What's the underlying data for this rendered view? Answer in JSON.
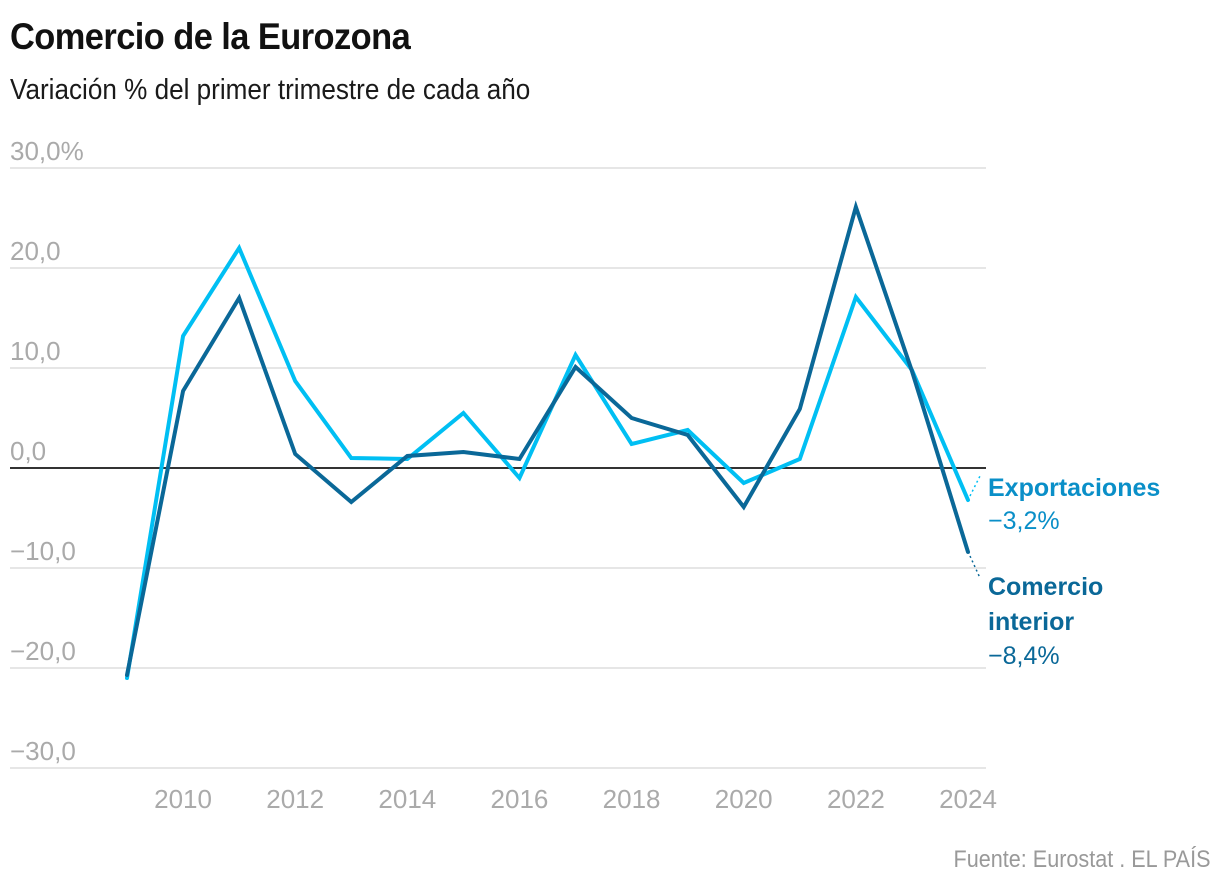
{
  "chart_data": {
    "type": "line",
    "title": "Comercio de la Eurozona",
    "subtitle": "Variación % del primer trimestre de cada año",
    "source": "Fuente: Eurostat . EL PAÍS",
    "xlabel": "",
    "ylabel": "",
    "x": [
      2009,
      2010,
      2011,
      2012,
      2013,
      2014,
      2015,
      2016,
      2017,
      2018,
      2019,
      2020,
      2021,
      2022,
      2023,
      2024
    ],
    "x_ticks": [
      "2010",
      "2012",
      "2014",
      "2016",
      "2018",
      "2020",
      "2022",
      "2024"
    ],
    "x_tick_values": [
      2010,
      2012,
      2014,
      2016,
      2018,
      2020,
      2022,
      2024
    ],
    "ylim": [
      -30,
      30
    ],
    "y_ticks": [
      {
        "value": 30,
        "label": "30,0%"
      },
      {
        "value": 20,
        "label": "20,0"
      },
      {
        "value": 10,
        "label": "10,0"
      },
      {
        "value": 0,
        "label": "0,0"
      },
      {
        "value": -10,
        "label": "−10,0"
      },
      {
        "value": -20,
        "label": "−20,0"
      },
      {
        "value": -30,
        "label": "−30,0"
      }
    ],
    "grid": true,
    "legend": "direct-labels-right",
    "series": [
      {
        "name": "Exportaciones",
        "color": "#00bff3",
        "label_color": "#0a8fc8",
        "end_label": "−3,2%",
        "values": [
          -21.0,
          13.2,
          22.0,
          8.7,
          1.0,
          0.9,
          5.5,
          -1.0,
          11.3,
          2.4,
          3.8,
          -1.5,
          0.9,
          17.1,
          9.8,
          -3.2
        ]
      },
      {
        "name": "Comercio interior",
        "name_lines": [
          "Comercio",
          "interior"
        ],
        "color": "#0a6898",
        "label_color": "#0a6898",
        "end_label": "−8,4%",
        "values": [
          -20.7,
          7.7,
          17.0,
          1.4,
          -3.4,
          1.2,
          1.6,
          0.9,
          10.1,
          5.0,
          3.3,
          -3.9,
          5.9,
          26.1,
          9.7,
          -8.4
        ]
      }
    ]
  }
}
